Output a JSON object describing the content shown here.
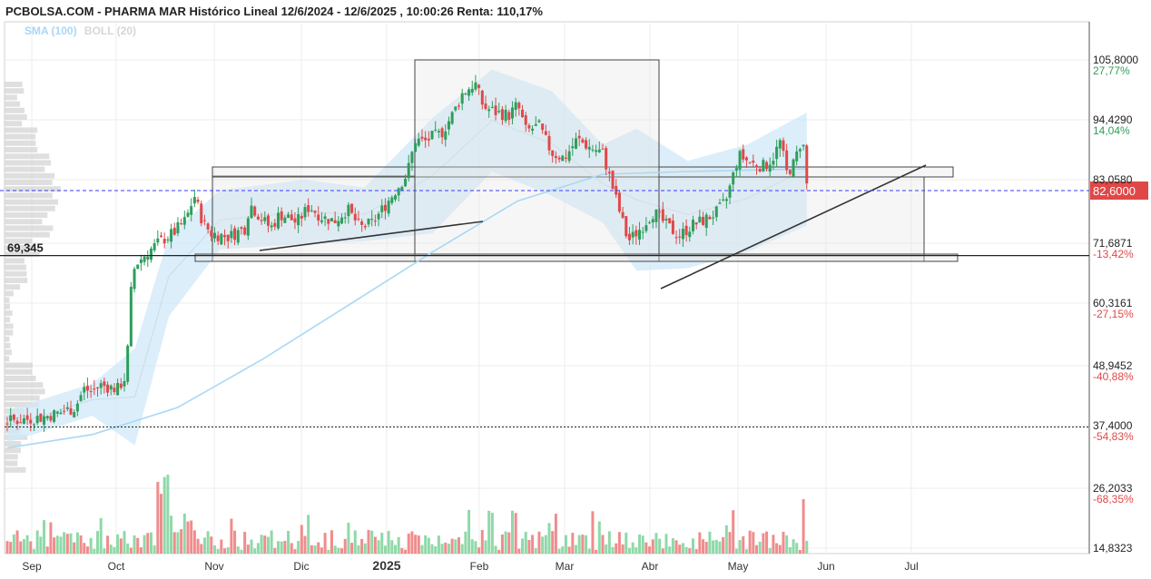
{
  "header": {
    "title": "PCBOLSA.COM - PHARMA MAR Histórico Lineal 12/6/2024 - 12/6/2025 , 10:00:26 Renta: 110,17%",
    "indicators": [
      {
        "label": "SMA (100)",
        "color": "#a8d8f5"
      },
      {
        "label": "BOLL (20)",
        "color": "#d6d6d6"
      }
    ]
  },
  "chart_data": {
    "type": "candlestick",
    "x_ticks": [
      "Sep",
      "Oct",
      "Nov",
      "Dic",
      "2025",
      "Feb",
      "Mar",
      "Abr",
      "May",
      "Jun",
      "Jul"
    ],
    "y_axis": {
      "range": [
        14.8323,
        115
      ],
      "ticks": [
        {
          "price": "105,8000",
          "pct": "27,77%",
          "pct_color": "#2e9e5b"
        },
        {
          "price": "94,4290",
          "pct": "14,04%",
          "pct_color": "#2e9e5b"
        },
        {
          "price": "83,0580",
          "pct": "",
          "pct_color": "#2e9e5b"
        },
        {
          "price": "71,6871",
          "pct": "-13,42%",
          "pct_color": "#e04848"
        },
        {
          "price": "60,3161",
          "pct": "-27,15%",
          "pct_color": "#e04848"
        },
        {
          "price": "48,9452",
          "pct": "-40,88%",
          "pct_color": "#e04848"
        },
        {
          "price": "37,4000",
          "pct": "-54,83%",
          "pct_color": "#e04848"
        },
        {
          "price": "26,2033",
          "pct": "-68,35%",
          "pct_color": "#e04848"
        },
        {
          "price": "14,8323",
          "pct": "",
          "pct_color": "#e04848"
        }
      ]
    },
    "current_price": "82,6000",
    "support_label": "69,345",
    "reference_levels": [
      69.345,
      37.4
    ],
    "price_path": [
      [
        0,
        38.5
      ],
      [
        0.02,
        38.8
      ],
      [
        0.04,
        39.2
      ],
      [
        0.06,
        40.0
      ],
      [
        0.08,
        41.0
      ],
      [
        0.09,
        44.5
      ],
      [
        0.1,
        44.0
      ],
      [
        0.11,
        45.2
      ],
      [
        0.12,
        44.8
      ],
      [
        0.13,
        44.5
      ],
      [
        0.14,
        47.0
      ],
      [
        0.145,
        62.0
      ],
      [
        0.15,
        67.5
      ],
      [
        0.165,
        70.0
      ],
      [
        0.18,
        72.0
      ],
      [
        0.195,
        73.5
      ],
      [
        0.21,
        76.0
      ],
      [
        0.22,
        80.5
      ],
      [
        0.23,
        75.5
      ],
      [
        0.24,
        73.5
      ],
      [
        0.26,
        72.8
      ],
      [
        0.28,
        74.5
      ],
      [
        0.285,
        79.0
      ],
      [
        0.3,
        76.0
      ],
      [
        0.31,
        74.5
      ],
      [
        0.32,
        77.0
      ],
      [
        0.33,
        76.5
      ],
      [
        0.34,
        75.5
      ],
      [
        0.355,
        78.5
      ],
      [
        0.37,
        76.5
      ],
      [
        0.385,
        75.8
      ],
      [
        0.4,
        78.0
      ],
      [
        0.415,
        74.5
      ],
      [
        0.43,
        75.5
      ],
      [
        0.45,
        80.0
      ],
      [
        0.47,
        84.5
      ],
      [
        0.48,
        91.0
      ],
      [
        0.49,
        90.5
      ],
      [
        0.5,
        91.5
      ],
      [
        0.51,
        92.0
      ],
      [
        0.525,
        96.0
      ],
      [
        0.535,
        99.5
      ],
      [
        0.55,
        101.5
      ],
      [
        0.56,
        97.0
      ],
      [
        0.575,
        96.0
      ],
      [
        0.59,
        95.5
      ],
      [
        0.6,
        97.5
      ],
      [
        0.61,
        92.5
      ],
      [
        0.625,
        93.5
      ],
      [
        0.64,
        88.5
      ],
      [
        0.655,
        87.5
      ],
      [
        0.67,
        91.0
      ],
      [
        0.685,
        89.5
      ],
      [
        0.7,
        88.5
      ],
      [
        0.71,
        83.0
      ],
      [
        0.72,
        77.5
      ],
      [
        0.73,
        72.0
      ],
      [
        0.745,
        74.5
      ],
      [
        0.76,
        77.5
      ],
      [
        0.775,
        75.0
      ],
      [
        0.79,
        73.0
      ],
      [
        0.805,
        75.0
      ],
      [
        0.82,
        76.0
      ],
      [
        0.835,
        77.5
      ],
      [
        0.845,
        79.5
      ],
      [
        0.86,
        88.0
      ],
      [
        0.875,
        86.5
      ],
      [
        0.89,
        86.0
      ],
      [
        0.9,
        87.5
      ],
      [
        0.91,
        91.0
      ],
      [
        0.915,
        84.5
      ],
      [
        0.925,
        86.5
      ],
      [
        0.935,
        91.5
      ],
      [
        0.94,
        82.6
      ]
    ],
    "sma_100": [
      [
        0.0,
        33.5
      ],
      [
        0.1,
        36.0
      ],
      [
        0.2,
        41.0
      ],
      [
        0.3,
        50.0
      ],
      [
        0.4,
        60.0
      ],
      [
        0.5,
        70.0
      ],
      [
        0.6,
        79.5
      ],
      [
        0.7,
        84.5
      ],
      [
        0.8,
        85.0
      ],
      [
        0.94,
        85.5
      ]
    ],
    "bollinger_upper": [
      [
        0.0,
        40.5
      ],
      [
        0.1,
        45.5
      ],
      [
        0.15,
        52.0
      ],
      [
        0.19,
        73.0
      ],
      [
        0.25,
        81.5
      ],
      [
        0.35,
        83.5
      ],
      [
        0.42,
        82.0
      ],
      [
        0.5,
        95.0
      ],
      [
        0.57,
        104.0
      ],
      [
        0.64,
        100.0
      ],
      [
        0.7,
        90.0
      ],
      [
        0.74,
        93.0
      ],
      [
        0.8,
        87.0
      ],
      [
        0.87,
        90.0
      ],
      [
        0.94,
        96.0
      ]
    ],
    "bollinger_lower": [
      [
        0.0,
        34.5
      ],
      [
        0.1,
        39.5
      ],
      [
        0.15,
        34.0
      ],
      [
        0.19,
        58.0
      ],
      [
        0.25,
        70.5
      ],
      [
        0.35,
        71.5
      ],
      [
        0.42,
        72.0
      ],
      [
        0.5,
        73.5
      ],
      [
        0.57,
        85.0
      ],
      [
        0.64,
        80.5
      ],
      [
        0.7,
        75.5
      ],
      [
        0.74,
        66.5
      ],
      [
        0.8,
        67.0
      ],
      [
        0.87,
        70.0
      ],
      [
        0.94,
        75.0
      ]
    ]
  }
}
